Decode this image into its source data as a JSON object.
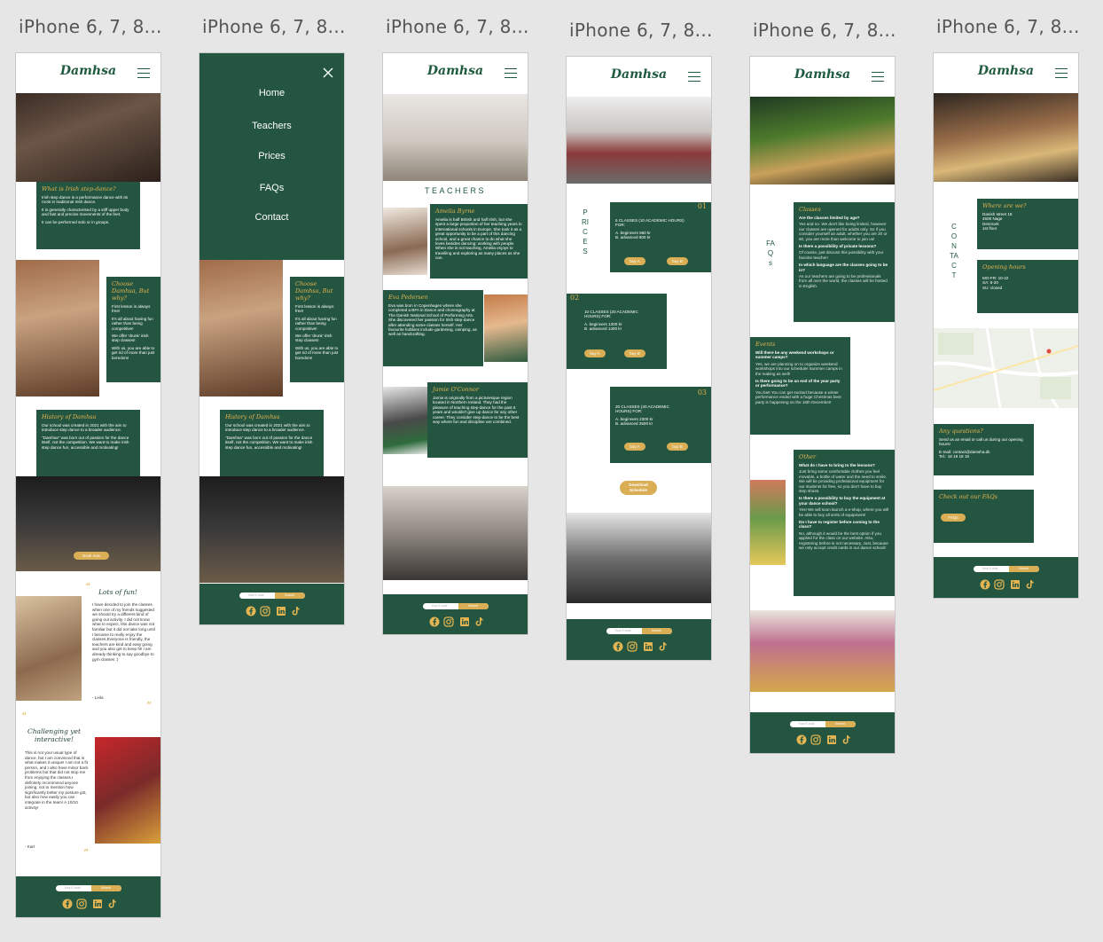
{
  "frame_label": "iPhone 6, 7, 8...",
  "brand": "Damhsa",
  "colors": {
    "primary": "#235540",
    "accent": "#d9ae55",
    "background": "#e6e6e6"
  },
  "icons": [
    "menu-icon",
    "close-icon",
    "facebook-icon",
    "instagram-icon",
    "linkedin-icon",
    "tiktok-icon"
  ],
  "footer": {
    "email_placeholder": "Your E-mail",
    "submit": "Submit"
  },
  "home": {
    "what_title": "What is Irish step-dance?",
    "what_p1": "Irish step dance is a performance dance with its roots in traditional Irish dance.",
    "what_p2": "It is generally characterised by a stiff upper body and fast and precise movements of the feet.",
    "what_p3": "It can be performed solo or in groups.",
    "why_title": "Choose Damhsa, But why?",
    "why_items": [
      "First lesson is always free!",
      "It's all about having fun rather than being competitive!",
      "We offer 'drunk' irish step classes!",
      "With us, you are able to get rid of more than just boredom!"
    ],
    "history_title": "History of Damhsa",
    "history_p1": "Our school was created in 2021 with the aim to introduce step dance to a broader audience.",
    "history_p2": "\"Damhsa\" was born out of passion for the dance itself, not the competition. We want to make irish step dance fun, accessible and motivating!",
    "book_now": "Book now",
    "t1_title": "Lots of fun!",
    "t1_text": "I have decided to join the classes when one of my friends suggested we should try a different kind of going out activity. I did not know what to expect, this dance was not familiar but it did not take long until I became to really enjoy the classes.Everyone is friendly, the teachers are kind and easy going and you also get to keep fit! I am already thinking to say goodbye to gym classes :)",
    "t1_author": "- Leila",
    "t2_title": "Challenging yet interactive!",
    "t2_text": "This is not your usual type of dance, but I am convinced that is what makes it unique! I am not a fit person, and I also have minor back problems but that did not stop me from enjoying the classes.I definitely recommend anyone joining, not to mention how significantly better my posture got, but also how easily you can integrate in the team! A 10/10 activity!",
    "t2_author": "- Karl"
  },
  "menu": {
    "items": [
      "Home",
      "Teachers",
      "Prices",
      "FAQs",
      "Contact"
    ]
  },
  "teachers": {
    "heading": "TEACHERS",
    "list": [
      {
        "name": "Amelia Byrne",
        "bio": "Amelia is half British and half Irish, but she spent a large proportion of her teaching years in international schools in Europe. She took it as a great opportunity to be a part of this dancing school, and a great chance to do what she loves besides dancing: working with people. When she is not teaching, Amelia enjoys to travelling and exploring as many places as she can."
      },
      {
        "name": "Eva Pedersen",
        "bio": "Eva was born in Copenhagen where she completed a BFA in Dance and choreography at The Danish National School of Performing Arts. She discovered her passion for Irish step-dance after attending some classes herself. Her favourite hobbies include gardening, camping, as well as handcrafting."
      },
      {
        "name": "Jamie O'Connor",
        "bio": "Jamie is originally from a picturesque region located in Northern Ireland. They had the pleasure of teaching step-dance for the past 6 years and wouldn't give up dance for any other career. They consider step-dance to be the best way where fun and discipline are combined."
      }
    ]
  },
  "prices": {
    "heading": "PRICES",
    "plans": [
      {
        "num": "01",
        "classes": "5 CLASSES (10 ACADEMIC HOURS) FOR:",
        "a": "A. beginners 560 kr",
        "b": "B. advanced 600 kr"
      },
      {
        "num": "02",
        "classes": "10 CLASSES (20 ACADEMIC HOURS) FOR:",
        "a": "A. beginners 1200 kr",
        "b": "B. advanced 1400 kr"
      },
      {
        "num": "03",
        "classes": "20 CLASSES (40 ACADEMIC HOURS) FOR:",
        "a": "A. beginners 2300 kr",
        "b": "B. advanced 2500 kr"
      }
    ],
    "buy_a": "buy A",
    "buy_b": "buy B",
    "download": "Download Schedule"
  },
  "faqs": {
    "heading": "FAQs",
    "classes_title": "Classes",
    "classes": [
      {
        "q": "Are the classes limited by age?",
        "a": "Yes and no. We don't like being limited, however our classes are opened for adults only. So if you consider yourself an adult, whether you are 20 or 60, you are more than welcome to join us!"
      },
      {
        "q": "Is there a possibility of private lessons?",
        "a": "Of course, just discuss this possibility with your favorite teacher!"
      },
      {
        "q": "In which language are the classes going to be in?",
        "a": "As our teachers are going to be professionals from all over the world, the classes will be hosted in English."
      }
    ],
    "events_title": "Events",
    "events": [
      {
        "q": "Will there be any weekend workshops or summer camps?",
        "a": "Yes, we are planning on to organize weekend workshops into our schedule! Summer camps in the making as well!"
      },
      {
        "q": "Is there going to be an end of the year party or performance?",
        "a": "You bet! You can get excited because a winter performance ended with a huge Christmas beer party is happening on the 16th December!"
      }
    ],
    "other_title": "Other",
    "other": [
      {
        "q": "What do I have to bring to the lessons?",
        "a": "Just bring some comfortable clothes you feel movable, a bottle of water and the need to smile. We will be providing professional equipment for our students for free, so you don't have to buy step shoes."
      },
      {
        "q": "Is there a possibility to buy the equipment at your dance school?",
        "a": "Yes! We will soon launch a e-shop, where you will be able to buy all sorts of equipment!"
      },
      {
        "q": "Do I have to register before coming to the class?",
        "a": "No, although it would be the best option if you applied for the class on our website. Also, registering before is not necessary. Just, because we only accept credit cards in our dance school!"
      }
    ]
  },
  "contact": {
    "heading": "CONTACT",
    "where_title": "Where are we?",
    "address": [
      "Danish street 18",
      "4500 Nage",
      "Denmark",
      "1st floor"
    ],
    "hours_title": "Opening hours",
    "hours": [
      "MO-FR: 10-22",
      "SA: 8-20",
      "SU: closed"
    ],
    "questions_title": "Any questions?",
    "questions_text": "Send us an email or call us during our opening hours!",
    "email": "E-mail: contact@damsha.dk",
    "tel": "Tel.: 18 18 18 18",
    "faq_title": "Check out our FAQs",
    "faq_btn": "FAQs"
  }
}
